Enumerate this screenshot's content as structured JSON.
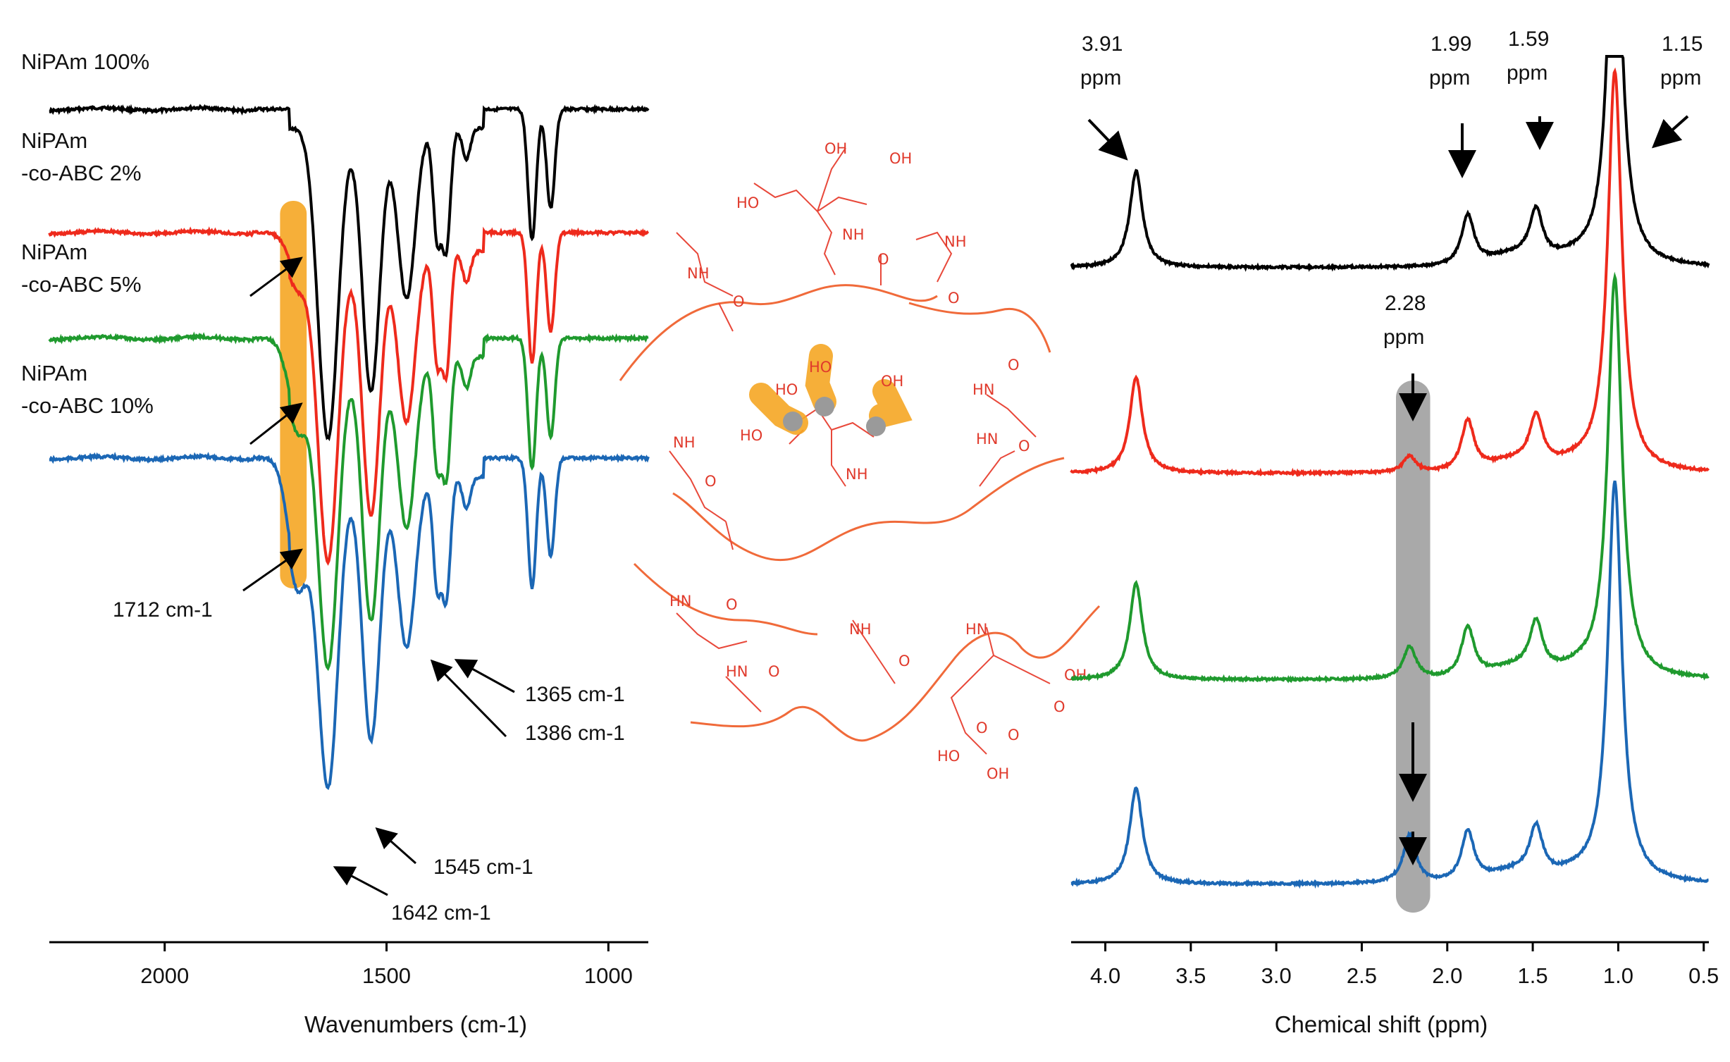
{
  "chart_data": [
    {
      "type": "line",
      "xlabel": "Wavenumbers (cm-1)",
      "xlim": [
        2260,
        910
      ],
      "x_reversed": true,
      "xticks": [
        {
          "value": 2000,
          "label": "2000"
        },
        {
          "value": 1500,
          "label": "1500"
        },
        {
          "value": 1000,
          "label": "1000"
        }
      ],
      "series": [
        {
          "name": "NiPAm 100%",
          "name_parts": [
            "NiPAm 100%"
          ],
          "color": "#000000",
          "offset": 0
        },
        {
          "name": "NiPAm -co-ABC 2%",
          "name_parts": [
            "NiPAm",
            "-co-ABC 2%"
          ],
          "color": "#ee2a1c",
          "offset": 1
        },
        {
          "name": "NiPAm -co-ABC 5%",
          "name_parts": [
            "NiPAm",
            "-co-ABC 5%"
          ],
          "color": "#1f9a2e",
          "offset": 2
        },
        {
          "name": "NiPAm -co-ABC 10%",
          "name_parts": [
            "NiPAm",
            "-co-ABC 10%"
          ],
          "color": "#1b67b5",
          "offset": 3
        }
      ],
      "bands": [
        {
          "center": 1700,
          "value": 1712,
          "label": "1712 cm-1",
          "depth": 0.12
        },
        {
          "center": 1632,
          "value": 1642,
          "label": "1642 cm-1",
          "depth": 1.0
        },
        {
          "center": 1535,
          "value": 1545,
          "label": "1545 cm-1",
          "depth": 0.85
        },
        {
          "center": 1455,
          "depth": 0.55
        },
        {
          "center": 1386,
          "label": "1386 cm-1",
          "depth": 0.35
        },
        {
          "center": 1365,
          "label": "1365 cm-1",
          "depth": 0.38
        },
        {
          "center": 1320,
          "depth": 0.1
        },
        {
          "center": 1172,
          "depth": 0.42
        },
        {
          "center": 1130,
          "depth": 0.32
        }
      ],
      "highlight_region": {
        "from": 1740,
        "to": 1680,
        "color": "#f5a623"
      }
    },
    {
      "type": "line",
      "xlabel": "Chemical shift (ppm)",
      "xlim": [
        4.2,
        0.47
      ],
      "x_reversed": true,
      "xticks": [
        {
          "value": 4.0,
          "label": "4.0"
        },
        {
          "value": 3.5,
          "label": "3.5"
        },
        {
          "value": 3.0,
          "label": "3.0"
        },
        {
          "value": 2.5,
          "label": "2.5"
        },
        {
          "value": 2.0,
          "label": "2.0"
        },
        {
          "value": 1.5,
          "label": "1.5"
        },
        {
          "value": 1.0,
          "label": "1.0"
        },
        {
          "value": 0.5,
          "label": "0.5"
        }
      ],
      "series": [
        {
          "name": "NiPAm 100%",
          "color": "#000000",
          "offset": 0
        },
        {
          "name": "NiPAm -co-ABC 2%",
          "color": "#ee2a1c",
          "offset": 1
        },
        {
          "name": "NiPAm -co-ABC 5%",
          "color": "#1f9a2e",
          "offset": 2
        },
        {
          "name": "NiPAm -co-ABC 10%",
          "color": "#1b67b5",
          "offset": 3
        }
      ],
      "peaks": [
        {
          "ppm": 3.82,
          "label_value": "3.91",
          "height": 0.72
        },
        {
          "ppm": 2.22,
          "label_value": "2.28",
          "height": 0.12
        },
        {
          "ppm": 1.88,
          "label_value": "1.99",
          "height": 0.38
        },
        {
          "ppm": 1.48,
          "label_value": "1.59",
          "height": 0.36
        },
        {
          "ppm": 1.02,
          "label_value": "1.15",
          "height": 3.0
        }
      ],
      "peak_unit": "ppm",
      "highlight_region": {
        "from": 2.3,
        "to": 2.1,
        "color": "#9a9a9a"
      }
    }
  ],
  "diagram": {
    "groups": [
      "HO",
      "OH",
      "NH",
      "HN",
      "O"
    ]
  }
}
